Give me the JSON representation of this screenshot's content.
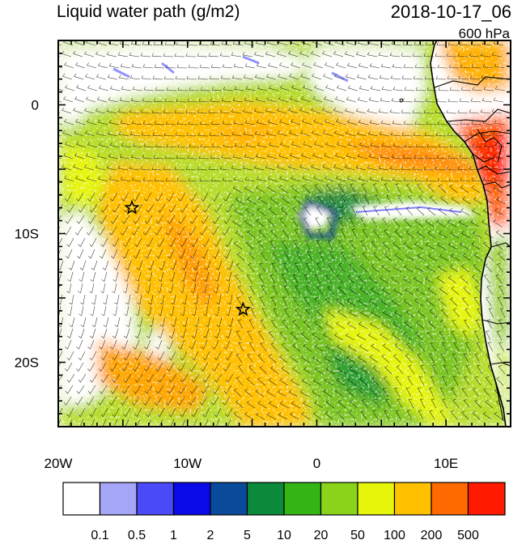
{
  "header": {
    "title": "Liquid water path (g/m2)",
    "datetime": "2018-10-17_06",
    "level": "600 hPa"
  },
  "axes": {
    "x_ticks": [
      {
        "value": -20,
        "label": "20W"
      },
      {
        "value": -10,
        "label": "10W"
      },
      {
        "value": 0,
        "label": "0"
      },
      {
        "value": 10,
        "label": "10E"
      }
    ],
    "y_ticks": [
      {
        "value": 0,
        "label": "0"
      },
      {
        "value": -10,
        "label": "10S"
      },
      {
        "value": -20,
        "label": "20S"
      }
    ],
    "lon_range": [
      -20,
      15
    ],
    "lat_range": [
      -25,
      5
    ]
  },
  "colorbar": {
    "colors": [
      "#ffffff",
      "#a6a6f8",
      "#4a4af8",
      "#0a0ae8",
      "#0a4a9a",
      "#0a8a3a",
      "#35b515",
      "#8ad31a",
      "#e6f50a",
      "#ffc000",
      "#ff6a00",
      "#ff1a00"
    ],
    "labels": [
      "0.1",
      "0.5",
      "1",
      "2",
      "5",
      "10",
      "20",
      "50",
      "100",
      "200",
      "500"
    ]
  },
  "markers": [
    {
      "name": "star",
      "lon": -14.3,
      "lat": -8.0
    },
    {
      "name": "star",
      "lon": -5.7,
      "lat": -15.9
    }
  ]
}
